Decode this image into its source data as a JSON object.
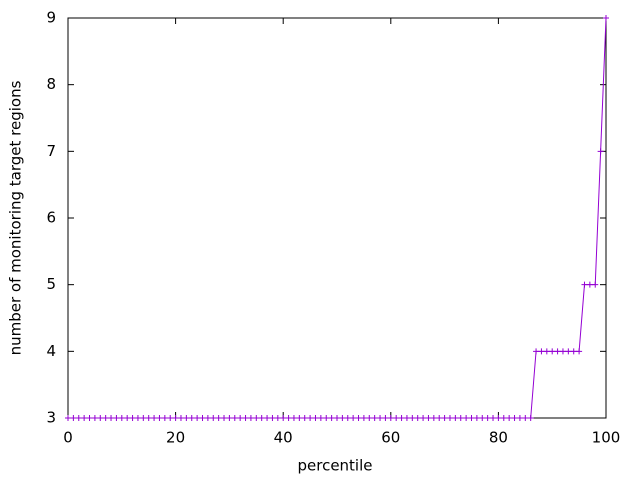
{
  "chart_data": {
    "type": "line",
    "xlabel": "percentile",
    "ylabel": "number of monitoring target regions",
    "x": [
      0,
      1,
      2,
      3,
      4,
      5,
      6,
      7,
      8,
      9,
      10,
      11,
      12,
      13,
      14,
      15,
      16,
      17,
      18,
      19,
      20,
      21,
      22,
      23,
      24,
      25,
      26,
      27,
      28,
      29,
      30,
      31,
      32,
      33,
      34,
      35,
      36,
      37,
      38,
      39,
      40,
      41,
      42,
      43,
      44,
      45,
      46,
      47,
      48,
      49,
      50,
      51,
      52,
      53,
      54,
      55,
      56,
      57,
      58,
      59,
      60,
      61,
      62,
      63,
      64,
      65,
      66,
      67,
      68,
      69,
      70,
      71,
      72,
      73,
      74,
      75,
      76,
      77,
      78,
      79,
      80,
      81,
      82,
      83,
      84,
      85,
      86,
      87,
      88,
      89,
      90,
      91,
      92,
      93,
      94,
      95,
      96,
      97,
      98,
      99,
      100
    ],
    "series": [
      {
        "color": "#9400d3",
        "values": [
          3,
          3,
          3,
          3,
          3,
          3,
          3,
          3,
          3,
          3,
          3,
          3,
          3,
          3,
          3,
          3,
          3,
          3,
          3,
          3,
          3,
          3,
          3,
          3,
          3,
          3,
          3,
          3,
          3,
          3,
          3,
          3,
          3,
          3,
          3,
          3,
          3,
          3,
          3,
          3,
          3,
          3,
          3,
          3,
          3,
          3,
          3,
          3,
          3,
          3,
          3,
          3,
          3,
          3,
          3,
          3,
          3,
          3,
          3,
          3,
          3,
          3,
          3,
          3,
          3,
          3,
          3,
          3,
          3,
          3,
          3,
          3,
          3,
          3,
          3,
          3,
          3,
          3,
          3,
          3,
          3,
          3,
          3,
          3,
          3,
          3,
          3,
          4,
          4,
          4,
          4,
          4,
          4,
          4,
          4,
          4,
          5,
          5,
          5,
          7,
          9
        ]
      }
    ],
    "xlim": [
      0,
      100
    ],
    "xticks": [
      0,
      20,
      40,
      60,
      80,
      100
    ],
    "ylim": [
      3,
      9
    ],
    "yticks": [
      3,
      4,
      5,
      6,
      7,
      8,
      9
    ]
  }
}
